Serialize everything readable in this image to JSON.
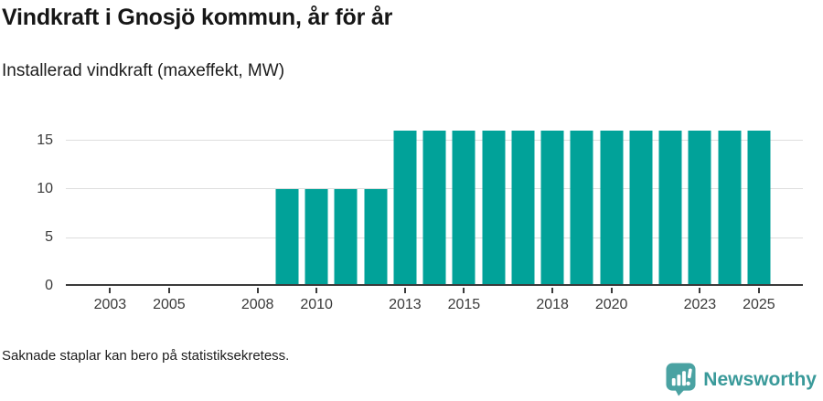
{
  "header": {
    "title": "Vindkraft i Gnosjö kommun, år för år",
    "subtitle": "Installerad vindkraft (maxeffekt, MW)"
  },
  "chart_data": {
    "type": "bar",
    "title": "Vindkraft i Gnosjö kommun, år för år",
    "ylabel": "Installerad vindkraft (maxeffekt, MW)",
    "categories": [
      2002,
      2003,
      2004,
      2005,
      2006,
      2007,
      2008,
      2009,
      2010,
      2011,
      2012,
      2013,
      2014,
      2015,
      2016,
      2017,
      2018,
      2019,
      2020,
      2021,
      2022,
      2023,
      2024,
      2025
    ],
    "values": [
      null,
      null,
      null,
      null,
      null,
      null,
      null,
      10,
      10,
      10,
      10,
      16,
      16,
      16,
      16,
      16,
      16,
      16,
      16,
      16,
      16,
      16,
      16,
      16
    ],
    "x_tick_labels": [
      "2003",
      "2005",
      "2008",
      "2010",
      "2013",
      "2015",
      "2018",
      "2020",
      "2023",
      "2025"
    ],
    "y_ticks": [
      0,
      5,
      10,
      15
    ],
    "ylim": [
      0,
      16.6
    ],
    "grid": true,
    "legend": "none",
    "bar_color": "#01a299",
    "grid_color": "#dddddd",
    "axis_color": "#3a3a3a",
    "tick_label_color": "#3a3a3a"
  },
  "footer": {
    "note": "Saknade staplar kan bero på statistiksekretess.",
    "brand": "Newsworthy",
    "brand_text_color": "#3a9a9a",
    "brand_bubble_color": "#4aa2a2"
  }
}
